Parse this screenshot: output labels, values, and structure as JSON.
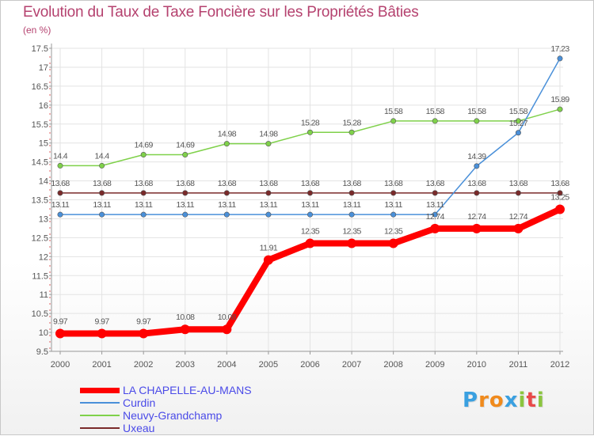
{
  "header": {
    "title": "Evolution du Taux de Taxe Foncière sur les Propriétés Bâties",
    "unit": "(en %)"
  },
  "chart_data": {
    "type": "line",
    "title": "Evolution du Taux de Taxe Foncière sur les Propriétés Bâties",
    "ylabel": "(en %)",
    "xlabel": "",
    "ylim": [
      9.5,
      17.5
    ],
    "yticks": [
      "9.5",
      "10",
      "10.5",
      "11",
      "11.5",
      "12",
      "12.5",
      "13",
      "13.5",
      "14",
      "14.5",
      "15",
      "15.5",
      "16",
      "16.5",
      "17",
      "17.5"
    ],
    "categories": [
      "2000",
      "2001",
      "2002",
      "2003",
      "2004",
      "2005",
      "2006",
      "2007",
      "2008",
      "2009",
      "2010",
      "2011",
      "2012"
    ],
    "grid": true,
    "series": [
      {
        "name": "Neuvy-Grandchamp",
        "color": "#7fd14a",
        "values": [
          14.4,
          14.4,
          14.69,
          14.69,
          14.98,
          14.98,
          15.28,
          15.28,
          15.58,
          15.58,
          15.58,
          15.58,
          15.89
        ],
        "labels": [
          "14.4",
          "14.4",
          "14.69",
          "14.69",
          "14.98",
          "14.98",
          "15.28",
          "15.28",
          "15.58",
          "15.58",
          "15.58",
          "15.58",
          "15.89"
        ]
      },
      {
        "name": "Uxeau",
        "color": "#7a2a2a",
        "values": [
          13.68,
          13.68,
          13.68,
          13.68,
          13.68,
          13.68,
          13.68,
          13.68,
          13.68,
          13.68,
          13.68,
          13.68,
          13.68
        ],
        "labels": [
          "13.68",
          "13.68",
          "13.68",
          "13.68",
          "13.68",
          "13.68",
          "13.68",
          "13.68",
          "13.68",
          "13.68",
          "13.68",
          "13.68",
          "13.68"
        ]
      },
      {
        "name": "Curdin",
        "color": "#4a90d9",
        "values": [
          13.11,
          13.11,
          13.11,
          13.11,
          13.11,
          13.11,
          13.11,
          13.11,
          13.11,
          13.11,
          14.39,
          15.27,
          17.23
        ],
        "labels": [
          "13.11",
          "13.11",
          "13.11",
          "13.11",
          "13.11",
          "13.11",
          "13.11",
          "13.11",
          "13.11",
          "13.11",
          "14.39",
          "15.27",
          "17.23"
        ]
      },
      {
        "name": "LA CHAPELLE-AU-MANS",
        "color": "#ff0000",
        "values": [
          9.97,
          9.97,
          9.97,
          10.08,
          10.08,
          11.91,
          12.35,
          12.35,
          12.35,
          12.74,
          12.74,
          12.74,
          13.25
        ],
        "labels": [
          "9.97",
          "9.97",
          "9.97",
          "10.08",
          "10.08",
          "11.91",
          "12.35",
          "12.35",
          "12.35",
          "12.74",
          "12.74",
          "12.74",
          "13.25"
        ]
      }
    ]
  },
  "legend": {
    "items": [
      {
        "label": "LA CHAPELLE-AU-MANS",
        "color": "#ff0000"
      },
      {
        "label": "Curdin",
        "color": "#4a90d9"
      },
      {
        "label": "Neuvy-Grandchamp",
        "color": "#7fd14a"
      },
      {
        "label": "Uxeau",
        "color": "#7a2a2a"
      }
    ]
  },
  "logo": {
    "text": "Proxiti",
    "letters": [
      "P",
      "r",
      "o",
      "x",
      "i",
      "t",
      "i"
    ],
    "colors": [
      "#3aa0e0",
      "#f08a1c",
      "#f08a1c",
      "#3aa0e0",
      "#8bc53f",
      "#e84a4a",
      "#8bc53f"
    ]
  }
}
